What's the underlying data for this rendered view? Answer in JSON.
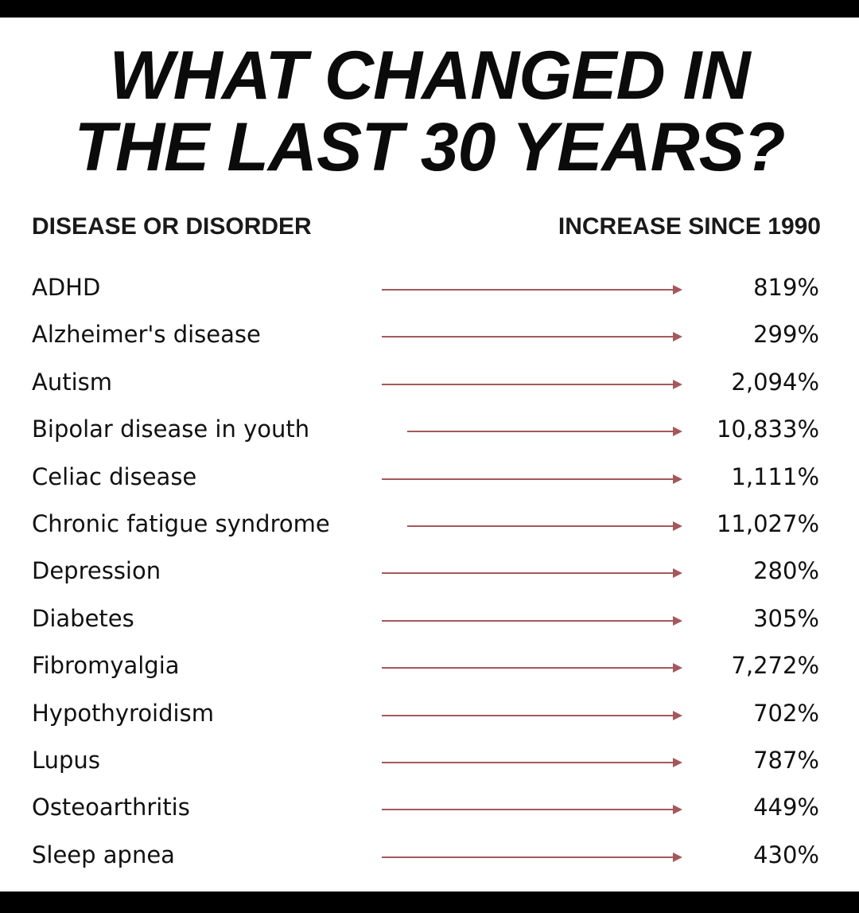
{
  "title_line1": "WHAT CHANGED IN",
  "title_line2": "THE LAST 30 YEARS?",
  "header_left": "DISEASE OR DISORDER",
  "header_right": "INCREASE SINCE 1990",
  "arrow_color": "#a5585c",
  "rows": [
    {
      "name": "ADHD",
      "value": "819%"
    },
    {
      "name": "Alzheimer's disease",
      "value": "299%"
    },
    {
      "name": "Autism",
      "value": "2,094%"
    },
    {
      "name": "Bipolar disease in youth",
      "value": "10,833%"
    },
    {
      "name": "Celiac disease",
      "value": "1,111%"
    },
    {
      "name": "Chronic fatigue syndrome",
      "value": "11,027%"
    },
    {
      "name": "Depression",
      "value": "280%"
    },
    {
      "name": "Diabetes",
      "value": "305%"
    },
    {
      "name": "Fibromyalgia",
      "value": "7,272%"
    },
    {
      "name": "Hypothyroidism",
      "value": "702%"
    },
    {
      "name": "Lupus",
      "value": "787%"
    },
    {
      "name": "Osteoarthritis",
      "value": "449%"
    },
    {
      "name": "Sleep apnea",
      "value": "430%"
    }
  ]
}
